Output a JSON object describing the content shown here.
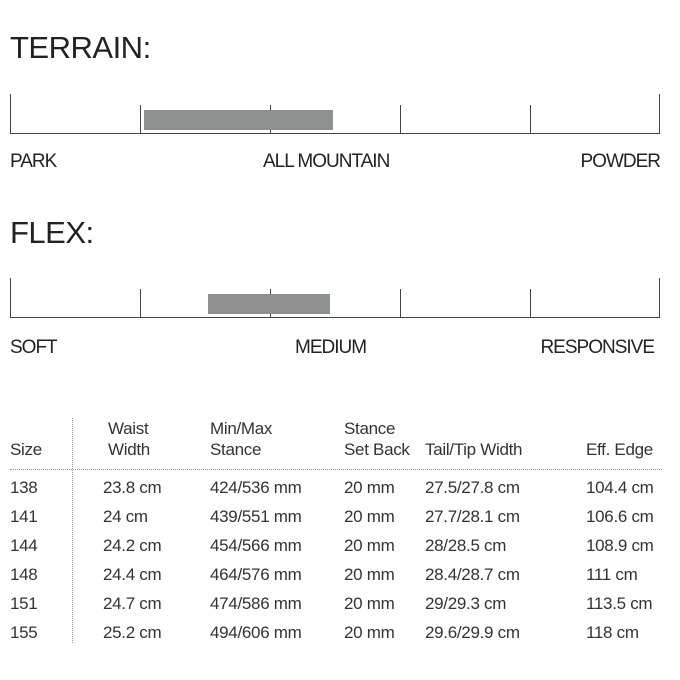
{
  "terrain": {
    "title": "TERRAIN:",
    "labels": [
      "PARK",
      "ALL MOUNTAIN",
      "POWDER"
    ],
    "range_percent": [
      20.6,
      49.7
    ]
  },
  "flex": {
    "title": "FLEX:",
    "labels": [
      "SOFT",
      "MEDIUM",
      "RESPONSIVE"
    ],
    "range_percent": [
      30.5,
      49.2
    ]
  },
  "colors": {
    "fill": "#8e9090",
    "line": "#444444"
  },
  "table": {
    "headers": [
      [
        "",
        "Size"
      ],
      [
        "Waist",
        "Width"
      ],
      [
        "Min/Max",
        "Stance"
      ],
      [
        "Stance",
        "Set Back"
      ],
      [
        "",
        "Tail/Tip Width"
      ],
      [
        "",
        "Eff. Edge"
      ]
    ],
    "rows": [
      [
        "138",
        "23.8 cm",
        "424/536 mm",
        "20 mm",
        "27.5/27.8 cm",
        "104.4 cm"
      ],
      [
        "141",
        "24 cm",
        "439/551 mm",
        "20 mm",
        "27.7/28.1 cm",
        "106.6 cm"
      ],
      [
        "144",
        "24.2 cm",
        "454/566 mm",
        "20 mm",
        "28/28.5 cm",
        "108.9 cm"
      ],
      [
        "148",
        "24.4 cm",
        "464/576 mm",
        "20 mm",
        "28.4/28.7 cm",
        "111 cm"
      ],
      [
        "151",
        "24.7 cm",
        "474/586 mm",
        "20 mm",
        "29/29.3 cm",
        "113.5 cm"
      ],
      [
        "155",
        "25.2 cm",
        "494/606 mm",
        "20 mm",
        "29.6/29.9 cm",
        "118 cm"
      ]
    ]
  }
}
